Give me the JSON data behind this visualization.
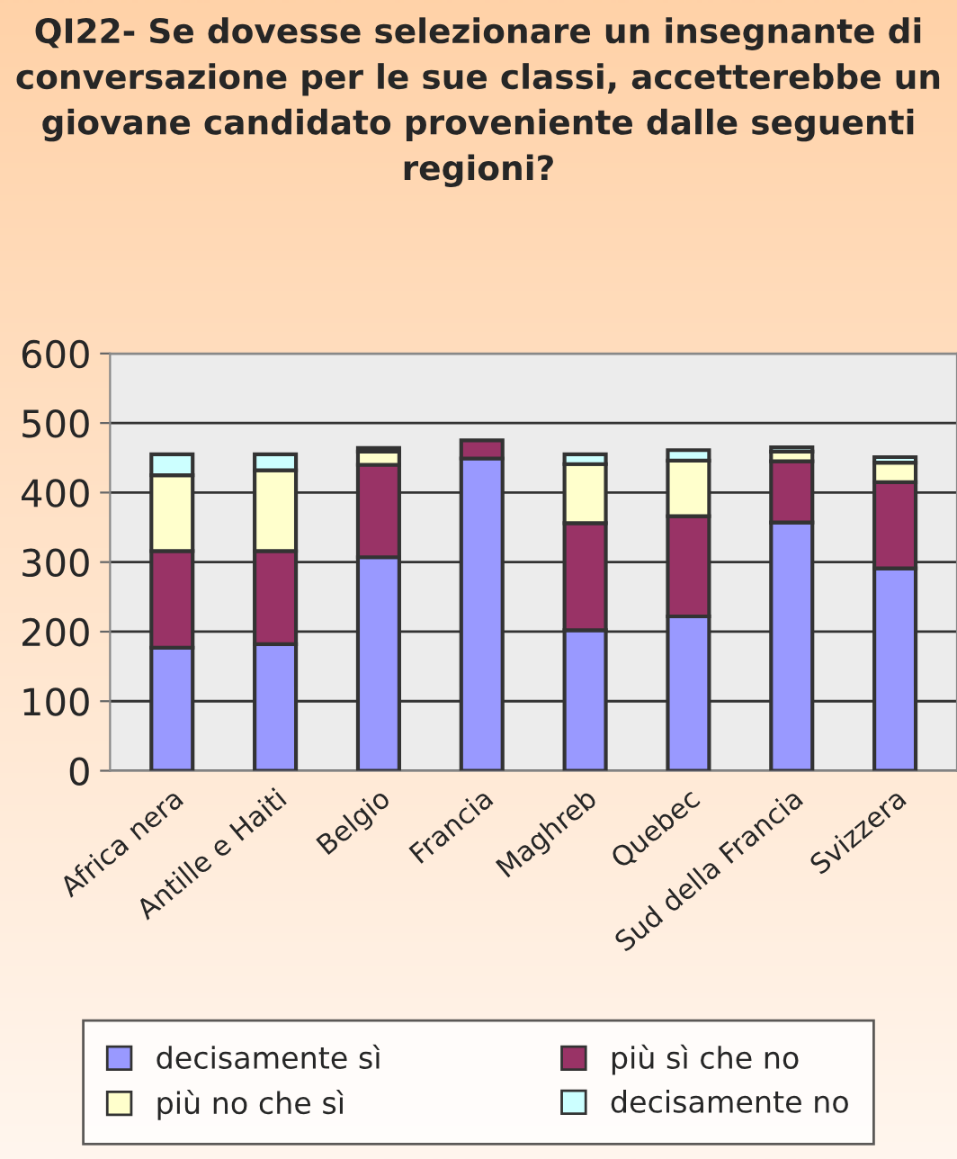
{
  "chart_data": {
    "type": "bar",
    "stacked": true,
    "title": "QI22- Se dovesse selezionare un insegnante di conversazione per le sue classi, accetterebbe un giovane candidato proveniente dalle seguenti regioni?",
    "categories": [
      "Africa nera",
      "Antille e Haiti",
      "Belgio",
      "Francia",
      "Maghreb",
      "Quebec",
      "Sud della Francia",
      "Svizzera"
    ],
    "series": [
      {
        "name": "decisamente sì",
        "color": "#9999ff",
        "values": [
          177,
          182,
          307,
          449,
          202,
          222,
          357,
          291
        ]
      },
      {
        "name": "più sì che no",
        "color": "#993366",
        "values": [
          139,
          134,
          133,
          26,
          154,
          144,
          88,
          124
        ]
      },
      {
        "name": "più no che sì",
        "color": "#ffffcc",
        "values": [
          109,
          116,
          19,
          null,
          85,
          80,
          14,
          28
        ]
      },
      {
        "name": "decisamente no",
        "color": "#ccffff",
        "values": [
          30,
          23,
          5,
          null,
          14,
          15,
          6,
          8
        ]
      }
    ],
    "ylim": [
      0,
      600
    ],
    "yticks": [
      0,
      100,
      200,
      300,
      400,
      500,
      600
    ],
    "grid": "y",
    "legend": "bottom"
  }
}
